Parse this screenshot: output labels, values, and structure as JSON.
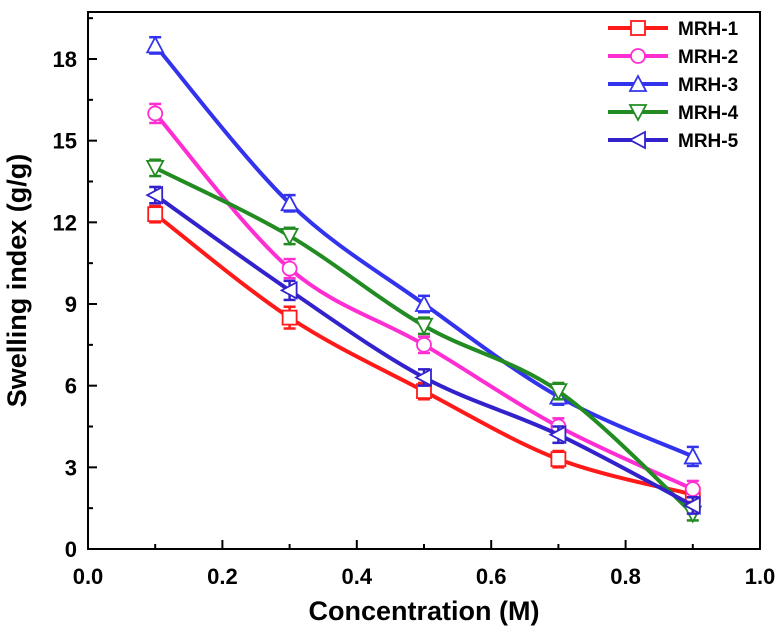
{
  "chart_data": {
    "type": "line",
    "title": "",
    "xlabel": "Concentration (M)",
    "ylabel": "Swelling index (g/g)",
    "xlim": [
      0.0,
      1.0
    ],
    "ylim": [
      0,
      19.5
    ],
    "x_ticks": [
      0.0,
      0.2,
      0.4,
      0.6,
      0.8,
      1.0
    ],
    "x_tick_labels": [
      "0.0",
      "0.2",
      "0.4",
      "0.6",
      "0.8",
      "1.0"
    ],
    "y_ticks": [
      0,
      3,
      6,
      9,
      12,
      15,
      18
    ],
    "y_tick_labels": [
      "0",
      "3",
      "6",
      "9",
      "12",
      "15",
      "18"
    ],
    "grid": false,
    "legend_position": "top-right",
    "x": [
      0.1,
      0.3,
      0.5,
      0.7,
      0.9
    ],
    "series": [
      {
        "name": "MRH-1",
        "color": "#ff1a1a",
        "marker": "square",
        "values": [
          12.3,
          8.5,
          5.8,
          3.3,
          2.0
        ],
        "errors": [
          0.3,
          0.4,
          0.3,
          0.3,
          0.3
        ]
      },
      {
        "name": "MRH-2",
        "color": "#ff2ed2",
        "marker": "circle",
        "values": [
          16.0,
          10.3,
          7.5,
          4.5,
          2.2
        ],
        "errors": [
          0.35,
          0.35,
          0.3,
          0.3,
          0.3
        ]
      },
      {
        "name": "MRH-3",
        "color": "#3333ee",
        "marker": "triangle-up",
        "values": [
          18.5,
          12.7,
          9.0,
          5.6,
          3.4
        ],
        "errors": [
          0.3,
          0.3,
          0.3,
          0.3,
          0.35
        ]
      },
      {
        "name": "MRH-4",
        "color": "#228b22",
        "marker": "triangle-down",
        "values": [
          14.0,
          11.5,
          8.2,
          5.8,
          1.3
        ],
        "errors": [
          0.3,
          0.3,
          0.3,
          0.3,
          0.25
        ]
      },
      {
        "name": "MRH-5",
        "color": "#3322cc",
        "marker": "triangle-left",
        "values": [
          13.0,
          9.5,
          6.3,
          4.2,
          1.6
        ],
        "errors": [
          0.3,
          0.35,
          0.3,
          0.3,
          0.3
        ]
      }
    ]
  }
}
